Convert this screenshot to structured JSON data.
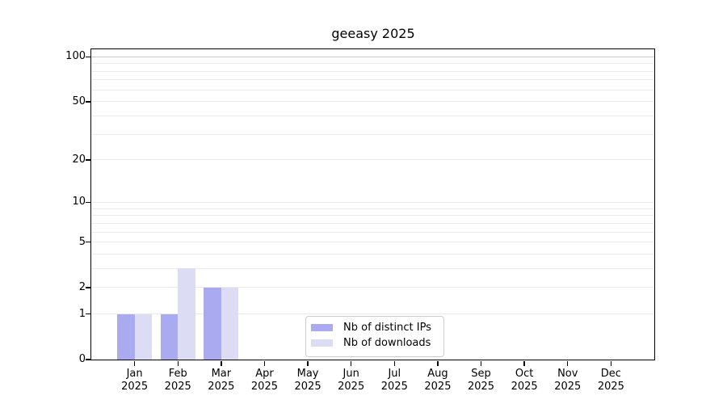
{
  "chart_data": {
    "type": "bar",
    "title": "geeasy 2025",
    "scale": "log1p",
    "categories": [
      "Jan 2025",
      "Feb 2025",
      "Mar 2025",
      "Apr 2025",
      "May 2025",
      "Jun 2025",
      "Jul 2025",
      "Aug 2025",
      "Sep 2025",
      "Oct 2025",
      "Nov 2025",
      "Dec 2025"
    ],
    "series": [
      {
        "name": "Nb of distinct IPs",
        "color": "#aaaaf0",
        "values": [
          1,
          1,
          2,
          0,
          0,
          0,
          0,
          0,
          0,
          0,
          0,
          0
        ]
      },
      {
        "name": "Nb of downloads",
        "color": "#dcdcf5",
        "values": [
          1,
          3,
          2,
          0,
          0,
          0,
          0,
          0,
          0,
          0,
          0,
          0
        ]
      }
    ],
    "y_ticks": [
      0,
      1,
      2,
      5,
      10,
      20,
      50,
      100
    ],
    "ylim": [
      0,
      100
    ],
    "xlabel": "",
    "ylabel": "",
    "grid": true,
    "legend_position": "lower center"
  },
  "colors": {
    "grid_minor": "#eaeaea",
    "grid_top": "#c8c8c8",
    "axis": "#000000",
    "legend_border": "#cccccc",
    "background": "#ffffff"
  }
}
